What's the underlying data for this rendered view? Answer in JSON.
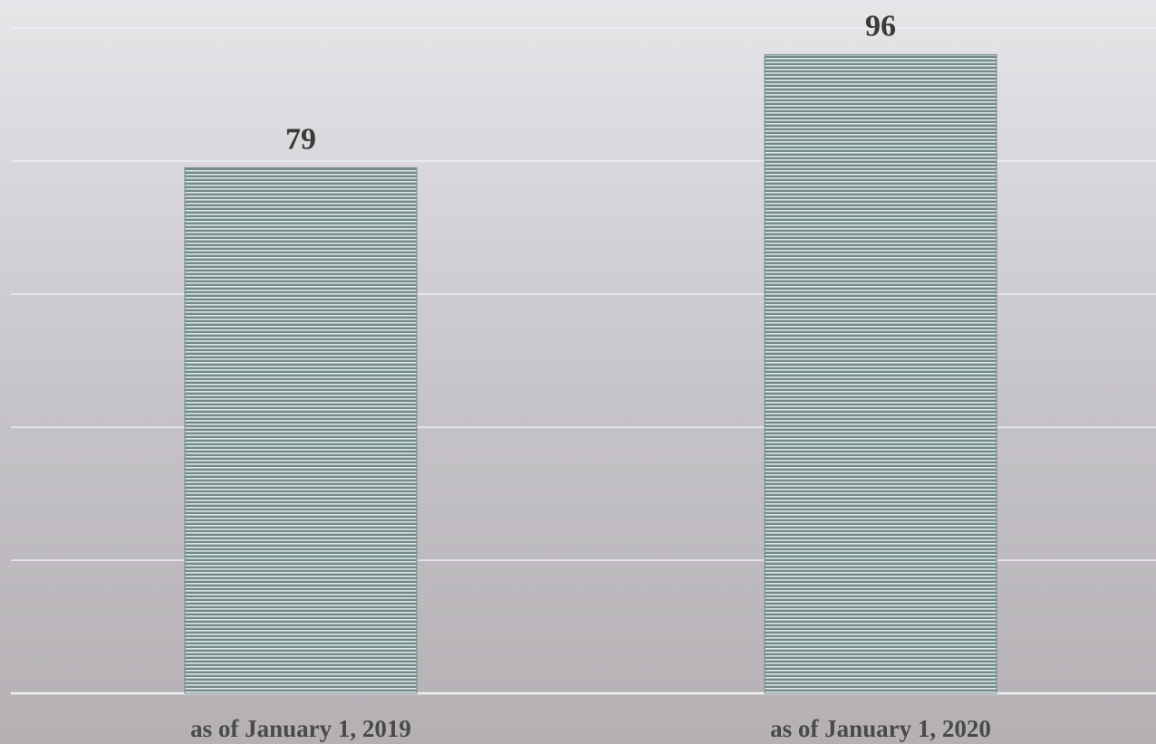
{
  "chart_data": {
    "type": "bar",
    "categories": [
      "as of January 1, 2019",
      "as of January 1, 2020"
    ],
    "values": [
      79,
      96
    ],
    "data_labels": [
      "79",
      "96"
    ],
    "ylim": [
      0,
      100
    ],
    "grid": true,
    "legend": "none",
    "bar_color": "#6f8a88",
    "bar_stripe_color": "#e1e6e5",
    "gridline_color": "#eef0f2"
  }
}
